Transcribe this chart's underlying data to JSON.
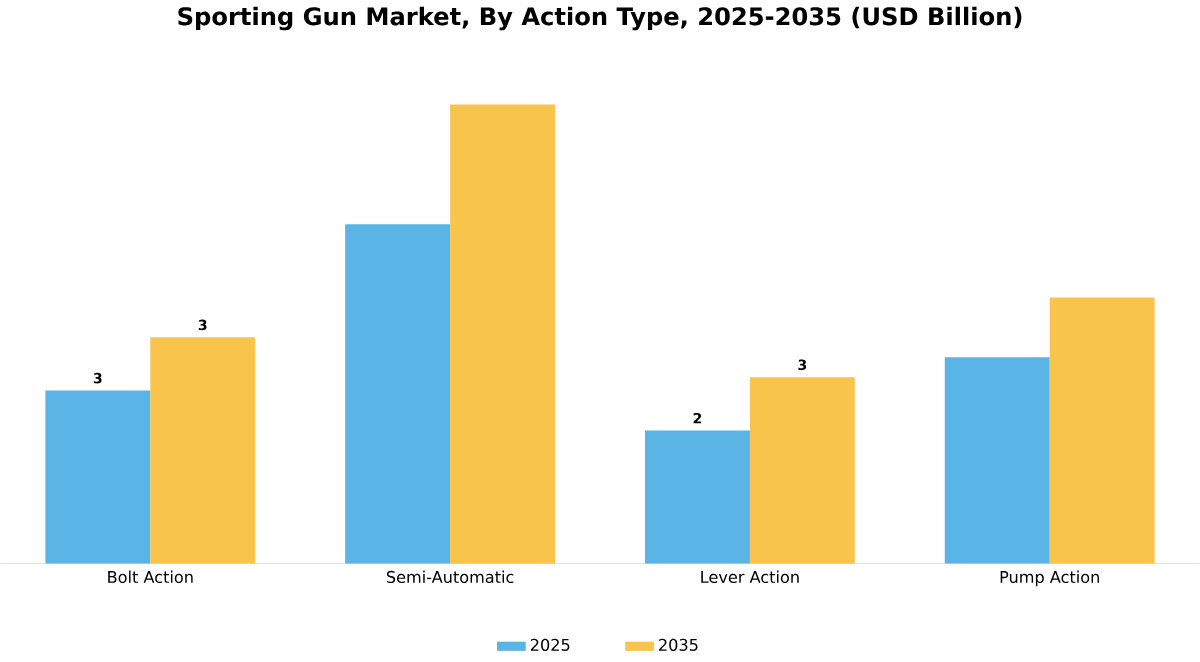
{
  "chart_data": {
    "type": "bar",
    "title": "Sporting Gun Market, By Action Type, 2025-2035 (USD Billion)",
    "categories": [
      "Bolt Action",
      "Semi-Automatic",
      "Lever Action",
      "Pump Action"
    ],
    "series": [
      {
        "name": "2025",
        "color": "#5ab4e5",
        "values": [
          2.6,
          5.1,
          2.0,
          3.1
        ],
        "value_labels": [
          "3",
          null,
          "2",
          null
        ]
      },
      {
        "name": "2035",
        "color": "#f9c44c",
        "values": [
          3.4,
          6.9,
          2.8,
          4.0
        ],
        "value_labels": [
          "3",
          null,
          "3",
          null
        ]
      }
    ],
    "legend": "bottom"
  }
}
